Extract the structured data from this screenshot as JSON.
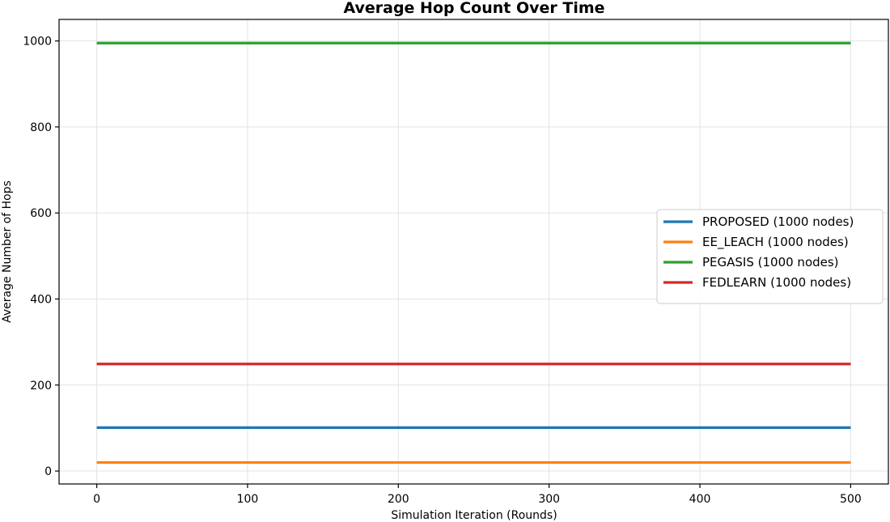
{
  "chart_data": {
    "type": "line",
    "title": "Average Hop Count Over Time",
    "xlabel": "Simulation Iteration (Rounds)",
    "ylabel": "Average Number of Hops",
    "xlim": [
      -25,
      525
    ],
    "ylim": [
      -30,
      1050
    ],
    "xticks": [
      0,
      100,
      200,
      300,
      400,
      500
    ],
    "yticks": [
      0,
      200,
      400,
      600,
      800,
      1000
    ],
    "x": [
      0,
      500
    ],
    "grid": true,
    "legend_position": "center-right",
    "series": [
      {
        "name": "PROPOSED (1000 nodes)",
        "color": "#1f77b4",
        "values": [
          101,
          101
        ]
      },
      {
        "name": "EE_LEACH (1000 nodes)",
        "color": "#ff7f0e",
        "values": [
          20,
          20
        ]
      },
      {
        "name": "PEGASIS (1000 nodes)",
        "color": "#2ca02c",
        "values": [
          995,
          995
        ]
      },
      {
        "name": "FEDLEARN (1000 nodes)",
        "color": "#d62728",
        "values": [
          249,
          249
        ]
      }
    ]
  }
}
